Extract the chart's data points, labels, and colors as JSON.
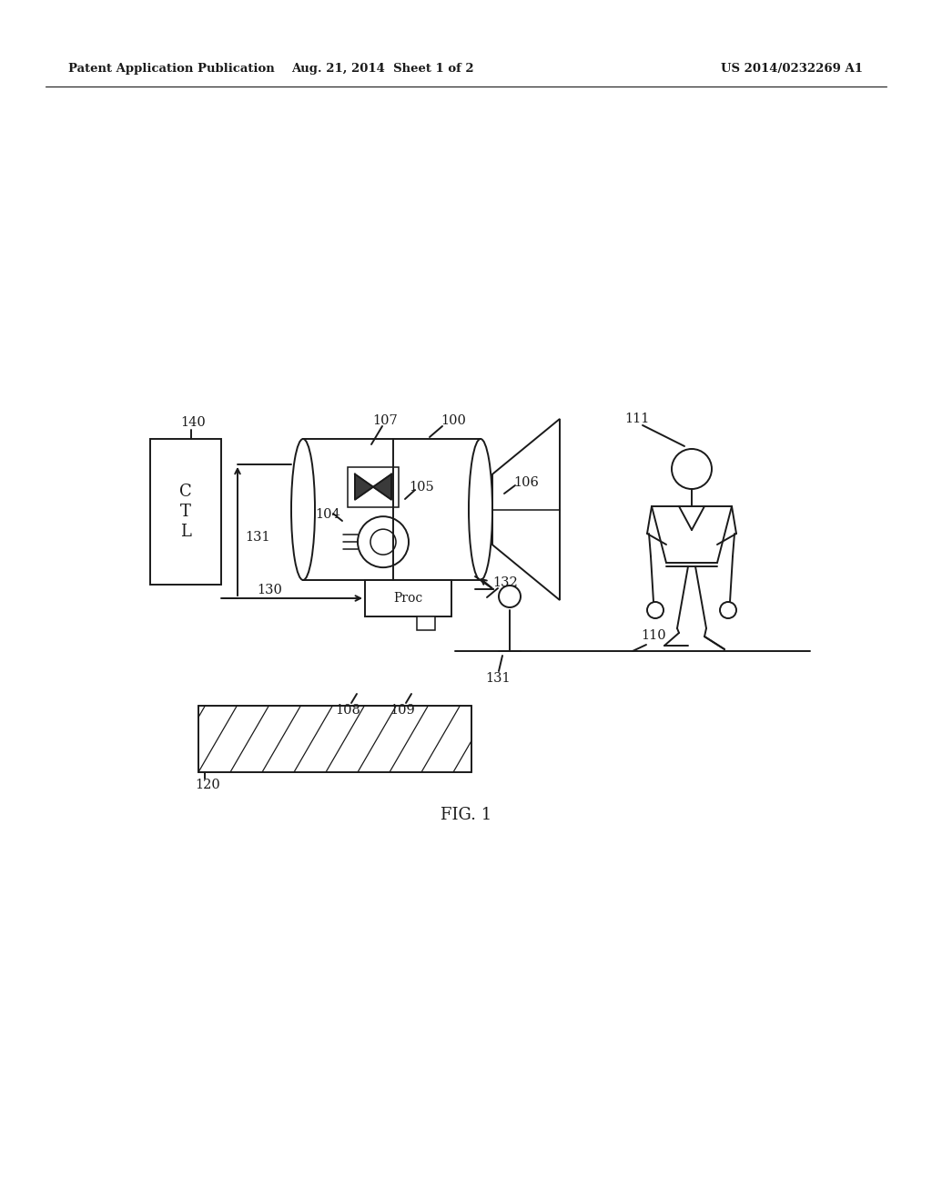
{
  "bg_color": "#ffffff",
  "line_color": "#1a1a1a",
  "header_left": "Patent Application Publication",
  "header_mid": "Aug. 21, 2014  Sheet 1 of 2",
  "header_right": "US 2014/0232269 A1",
  "fig_label": "FIG. 1",
  "label_fontsize": 10.5,
  "header_fontsize": 9.5,
  "fig_width": 1024,
  "fig_height": 1320,
  "dpi": 100
}
